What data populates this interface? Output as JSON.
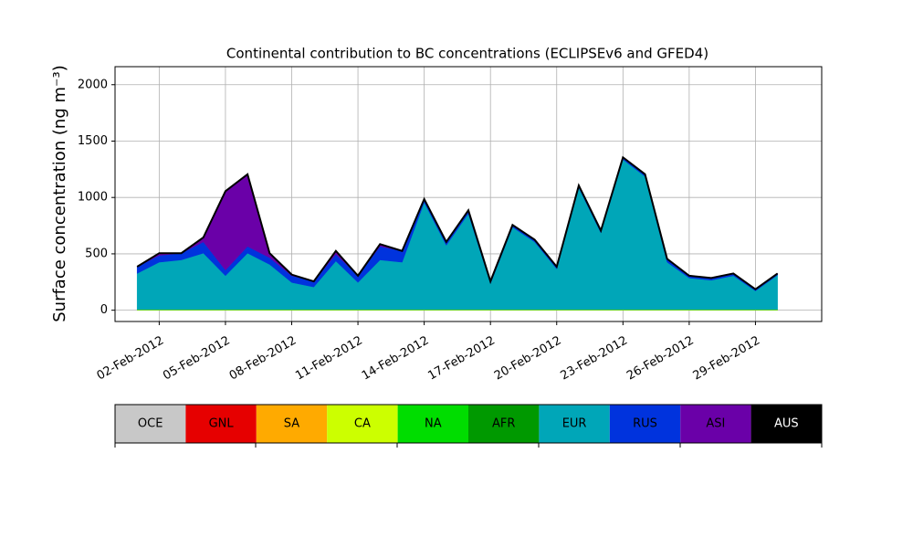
{
  "chart_data": {
    "type": "stacked-area",
    "title": "Continental contribution to BC concentrations (ECLIPSEv6 and GFED4)",
    "y_label": "Surface concentration (ng m⁻³)",
    "x": [
      "2012-02-01",
      "2012-02-02",
      "2012-02-03",
      "2012-02-04",
      "2012-02-05",
      "2012-02-06",
      "2012-02-07",
      "2012-02-08",
      "2012-02-09",
      "2012-02-10",
      "2012-02-11",
      "2012-02-12",
      "2012-02-13",
      "2012-02-14",
      "2012-02-15",
      "2012-02-16",
      "2012-02-17",
      "2012-02-18",
      "2012-02-19",
      "2012-02-20",
      "2012-02-21",
      "2012-02-22",
      "2012-02-23",
      "2012-02-24",
      "2012-02-25",
      "2012-02-26",
      "2012-02-27",
      "2012-02-28",
      "2012-02-29",
      "2012-03-01"
    ],
    "series": [
      {
        "name": "OCE",
        "color": "#c8c8c8",
        "values": [
          0,
          0,
          0,
          0,
          0,
          0,
          0,
          0,
          0,
          0,
          0,
          0,
          0,
          0,
          0,
          0,
          0,
          0,
          0,
          0,
          0,
          0,
          0,
          0,
          0,
          0,
          0,
          0,
          0,
          0
        ]
      },
      {
        "name": "GNL",
        "color": "#e60000",
        "values": [
          0,
          0,
          0,
          0,
          0,
          0,
          0,
          0,
          0,
          0,
          0,
          0,
          0,
          0,
          0,
          0,
          0,
          0,
          0,
          0,
          0,
          0,
          0,
          0,
          0,
          0,
          0,
          0,
          0,
          0
        ]
      },
      {
        "name": "SA",
        "color": "#ffaa00",
        "values": [
          0,
          0,
          0,
          0,
          0,
          0,
          0,
          0,
          0,
          0,
          0,
          0,
          0,
          0,
          0,
          0,
          0,
          0,
          0,
          0,
          0,
          0,
          0,
          0,
          0,
          0,
          0,
          0,
          0,
          0
        ]
      },
      {
        "name": "CA",
        "color": "#ccff00",
        "values": [
          3,
          3,
          3,
          3,
          3,
          3,
          3,
          3,
          3,
          3,
          3,
          3,
          3,
          3,
          3,
          3,
          3,
          3,
          3,
          3,
          3,
          3,
          3,
          3,
          3,
          3,
          3,
          3,
          3,
          3
        ]
      },
      {
        "name": "NA",
        "color": "#00dd00",
        "values": [
          3,
          3,
          3,
          3,
          3,
          3,
          3,
          3,
          3,
          3,
          3,
          3,
          3,
          3,
          3,
          3,
          3,
          3,
          3,
          3,
          3,
          3,
          3,
          3,
          3,
          3,
          3,
          3,
          3,
          3
        ]
      },
      {
        "name": "AFR",
        "color": "#009900",
        "values": [
          0,
          0,
          0,
          0,
          0,
          0,
          0,
          0,
          0,
          0,
          0,
          0,
          0,
          0,
          0,
          0,
          0,
          0,
          0,
          0,
          0,
          0,
          0,
          0,
          0,
          0,
          0,
          0,
          0,
          0
        ]
      },
      {
        "name": "EUR",
        "color": "#00a6b8",
        "values": [
          320,
          420,
          440,
          500,
          300,
          500,
          400,
          240,
          200,
          430,
          240,
          440,
          420,
          950,
          570,
          850,
          230,
          730,
          600,
          360,
          1080,
          680,
          1330,
          1180,
          420,
          280,
          260,
          300,
          165,
          305
        ]
      },
      {
        "name": "RUS",
        "color": "#0033dd",
        "values": [
          60,
          60,
          60,
          100,
          50,
          60,
          60,
          60,
          50,
          60,
          60,
          120,
          100,
          30,
          30,
          30,
          20,
          20,
          20,
          20,
          20,
          20,
          20,
          20,
          30,
          20,
          20,
          20,
          15,
          15
        ]
      },
      {
        "name": "ASI",
        "color": "#6a00a8",
        "values": [
          0,
          20,
          0,
          40,
          700,
          640,
          40,
          10,
          0,
          30,
          0,
          20,
          0,
          0,
          0,
          0,
          0,
          0,
          0,
          0,
          0,
          0,
          0,
          0,
          0,
          0,
          0,
          0,
          0,
          0
        ]
      },
      {
        "name": "AUS",
        "color": "#000000",
        "values": [
          0,
          0,
          0,
          0,
          0,
          0,
          0,
          0,
          0,
          0,
          0,
          0,
          0,
          0,
          0,
          0,
          0,
          0,
          0,
          0,
          0,
          0,
          0,
          0,
          0,
          0,
          0,
          0,
          0,
          0
        ]
      }
    ],
    "xlim": [
      "2012-01-31",
      "2012-03-03"
    ],
    "xticks": [
      {
        "value": "2012-02-02",
        "label": "02-Feb-2012"
      },
      {
        "value": "2012-02-05",
        "label": "05-Feb-2012"
      },
      {
        "value": "2012-02-08",
        "label": "08-Feb-2012"
      },
      {
        "value": "2012-02-11",
        "label": "11-Feb-2012"
      },
      {
        "value": "2012-02-14",
        "label": "14-Feb-2012"
      },
      {
        "value": "2012-02-17",
        "label": "17-Feb-2012"
      },
      {
        "value": "2012-02-20",
        "label": "20-Feb-2012"
      },
      {
        "value": "2012-02-23",
        "label": "23-Feb-2012"
      },
      {
        "value": "2012-02-26",
        "label": "26-Feb-2012"
      },
      {
        "value": "2012-02-29",
        "label": "29-Feb-2012"
      }
    ],
    "ylim": [
      -100,
      2160
    ],
    "yticks": [
      0,
      500,
      1000,
      1500,
      2000
    ],
    "grid": true
  }
}
